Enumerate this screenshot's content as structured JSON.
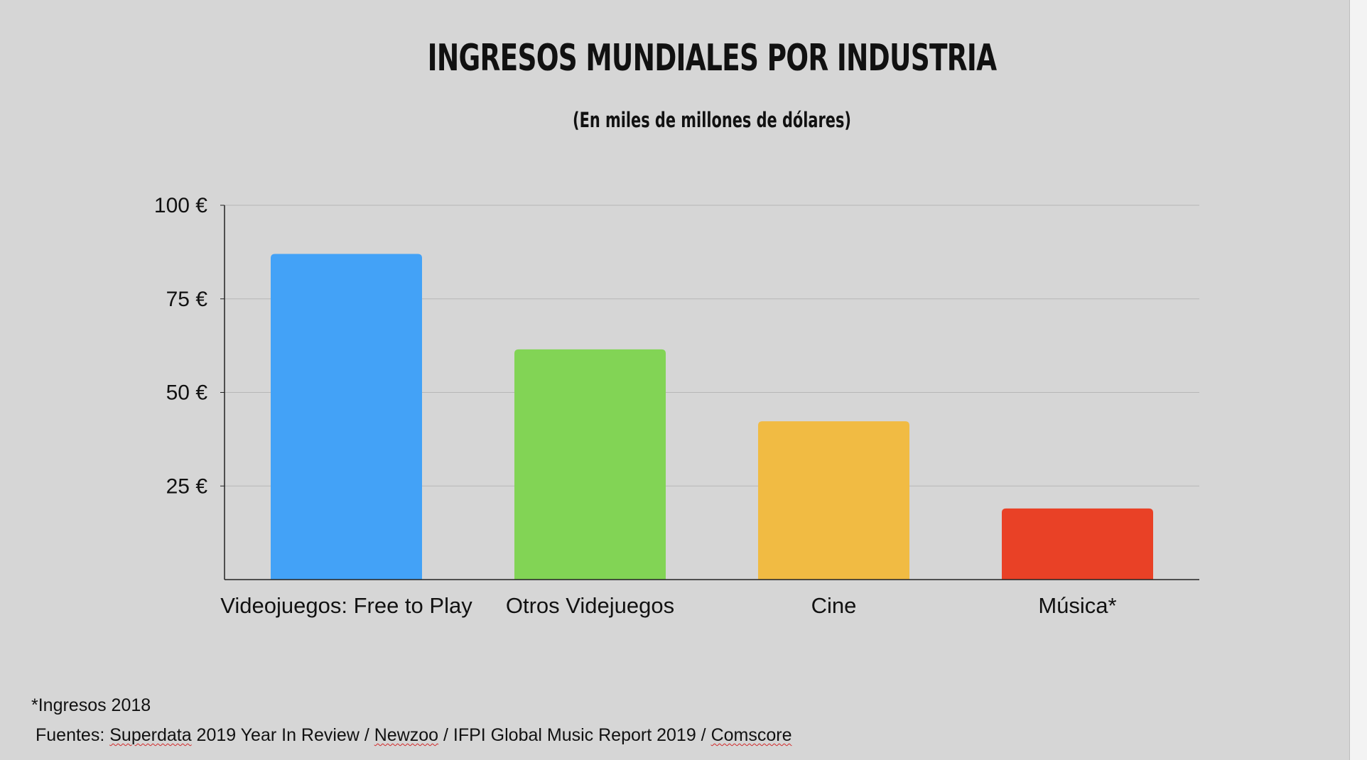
{
  "chart_data": {
    "type": "bar",
    "title": "INGRESOS MUNDIALES POR INDUSTRIA",
    "subtitle": "(En miles de millones de dólares)",
    "categories": [
      "Videojuegos: Free to Play",
      "Otros Videjuegos",
      "Cine",
      "Música*"
    ],
    "values": [
      87,
      61.5,
      42.3,
      19
    ],
    "colors": [
      "#43a2f7",
      "#82d455",
      "#f1bb43",
      "#e94126"
    ],
    "yticks": [
      25,
      50,
      75,
      100
    ],
    "ytick_labels": [
      "25 €",
      "50 €",
      "75 €",
      "100 €"
    ],
    "ylim": [
      0,
      100
    ],
    "grid": true,
    "xlabel": "",
    "ylabel": ""
  },
  "footnote": "*Ingresos 2018",
  "sources": {
    "prefix": "Fuentes: ",
    "superdata": "Superdata",
    "part2": " 2019 Year In Review / ",
    "newzoo": "Newzoo",
    "part3": " / IFPI Global Music Report 2019 / ",
    "comscore": "Comscore"
  }
}
